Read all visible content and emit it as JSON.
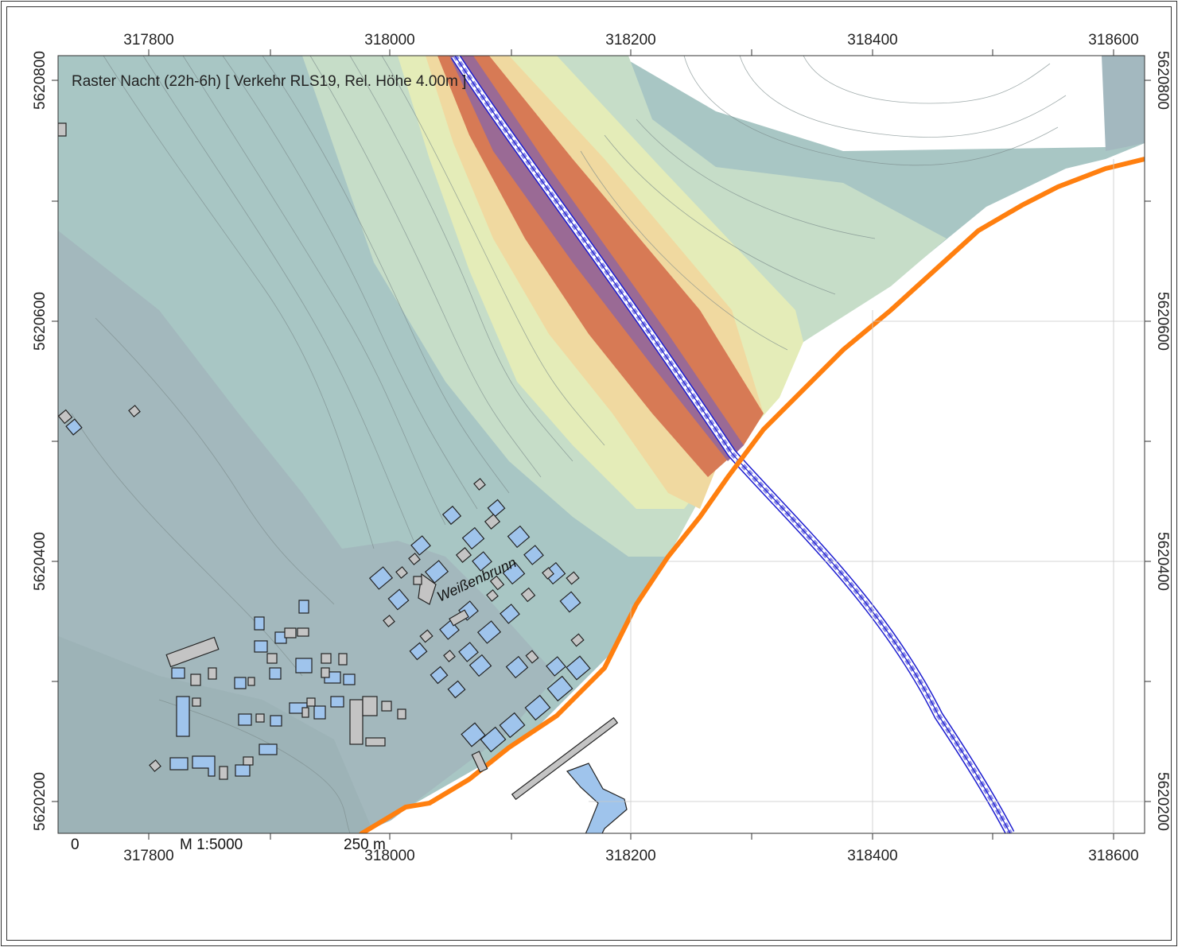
{
  "map": {
    "title": "Raster Nacht (22h-6h)  [ Verkehr RLS19, Rel. Höhe  4.00m ]",
    "place_label": "Weißenbrunn",
    "scale_bar": {
      "start_label": "0",
      "scale_label": "M 1:5000",
      "end_label": "250 m"
    },
    "x_ticks": [
      "317800",
      "318000",
      "318200",
      "318400",
      "318600"
    ],
    "y_ticks": [
      "5620800",
      "5620600",
      "5620400",
      "5620200"
    ],
    "colors": {
      "road": "#1b1bd0",
      "boundary": "#ff7f0f",
      "building_calc": "#9fc4ec",
      "building_other": "#c4c4c4",
      "level_low": "#a5b8bd",
      "level_mid": "#b8d4cc",
      "level_high": "#e8eeb4",
      "level_very_high": "#d77a55"
    }
  }
}
